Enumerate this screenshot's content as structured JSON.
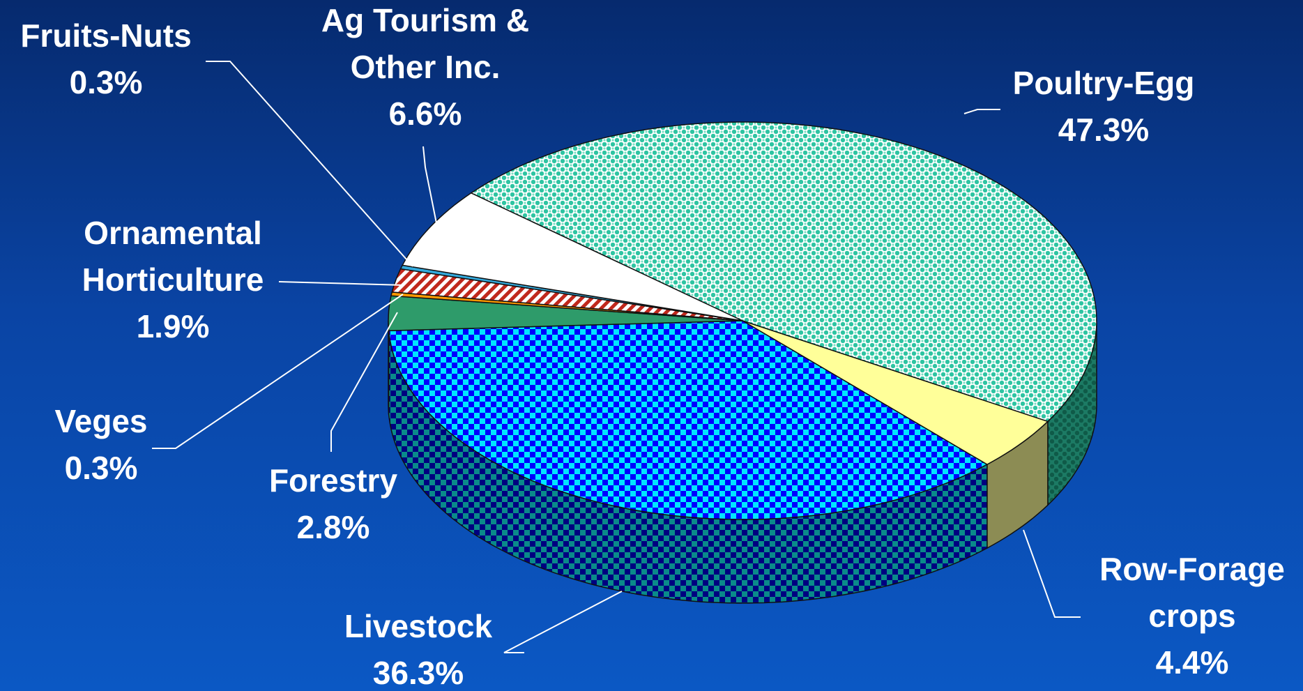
{
  "chart_data": {
    "type": "pie",
    "title": "",
    "categories": [
      "Poultry-Egg",
      "Row-Forage crops",
      "Livestock",
      "Forestry",
      "Veges",
      "Ornamental Horticulture",
      "Fruits-Nuts",
      "Ag Tourism & Other Inc."
    ],
    "values": [
      47.3,
      4.4,
      36.3,
      2.8,
      0.3,
      1.9,
      0.3,
      6.6
    ],
    "unit": "%",
    "labels": [
      {
        "name_lines": [
          "Poultry-Egg"
        ],
        "value": "47.3%"
      },
      {
        "name_lines": [
          "Row-Forage",
          "crops"
        ],
        "value": "4.4%"
      },
      {
        "name_lines": [
          "Livestock"
        ],
        "value": "36.3%"
      },
      {
        "name_lines": [
          "Forestry"
        ],
        "value": "2.8%"
      },
      {
        "name_lines": [
          "Veges"
        ],
        "value": "0.3%"
      },
      {
        "name_lines": [
          "Ornamental",
          "Horticulture"
        ],
        "value": "1.9%"
      },
      {
        "name_lines": [
          "Fruits-Nuts"
        ],
        "value": "0.3%"
      },
      {
        "name_lines": [
          "Ag Tourism &",
          "Other Inc."
        ],
        "value": "6.6%"
      }
    ],
    "colors": [
      "#2ec4a2",
      "#ffff99",
      "#0000ff",
      "#2e9b6a",
      "#ff9900",
      "#c0281c",
      "#33aadd",
      "#ffffff"
    ],
    "patterns": [
      "dots",
      "solid",
      "checker",
      "solid",
      "solid",
      "stripes",
      "solid",
      "solid"
    ],
    "style": "3d-exploded-pie",
    "legend": "none"
  }
}
